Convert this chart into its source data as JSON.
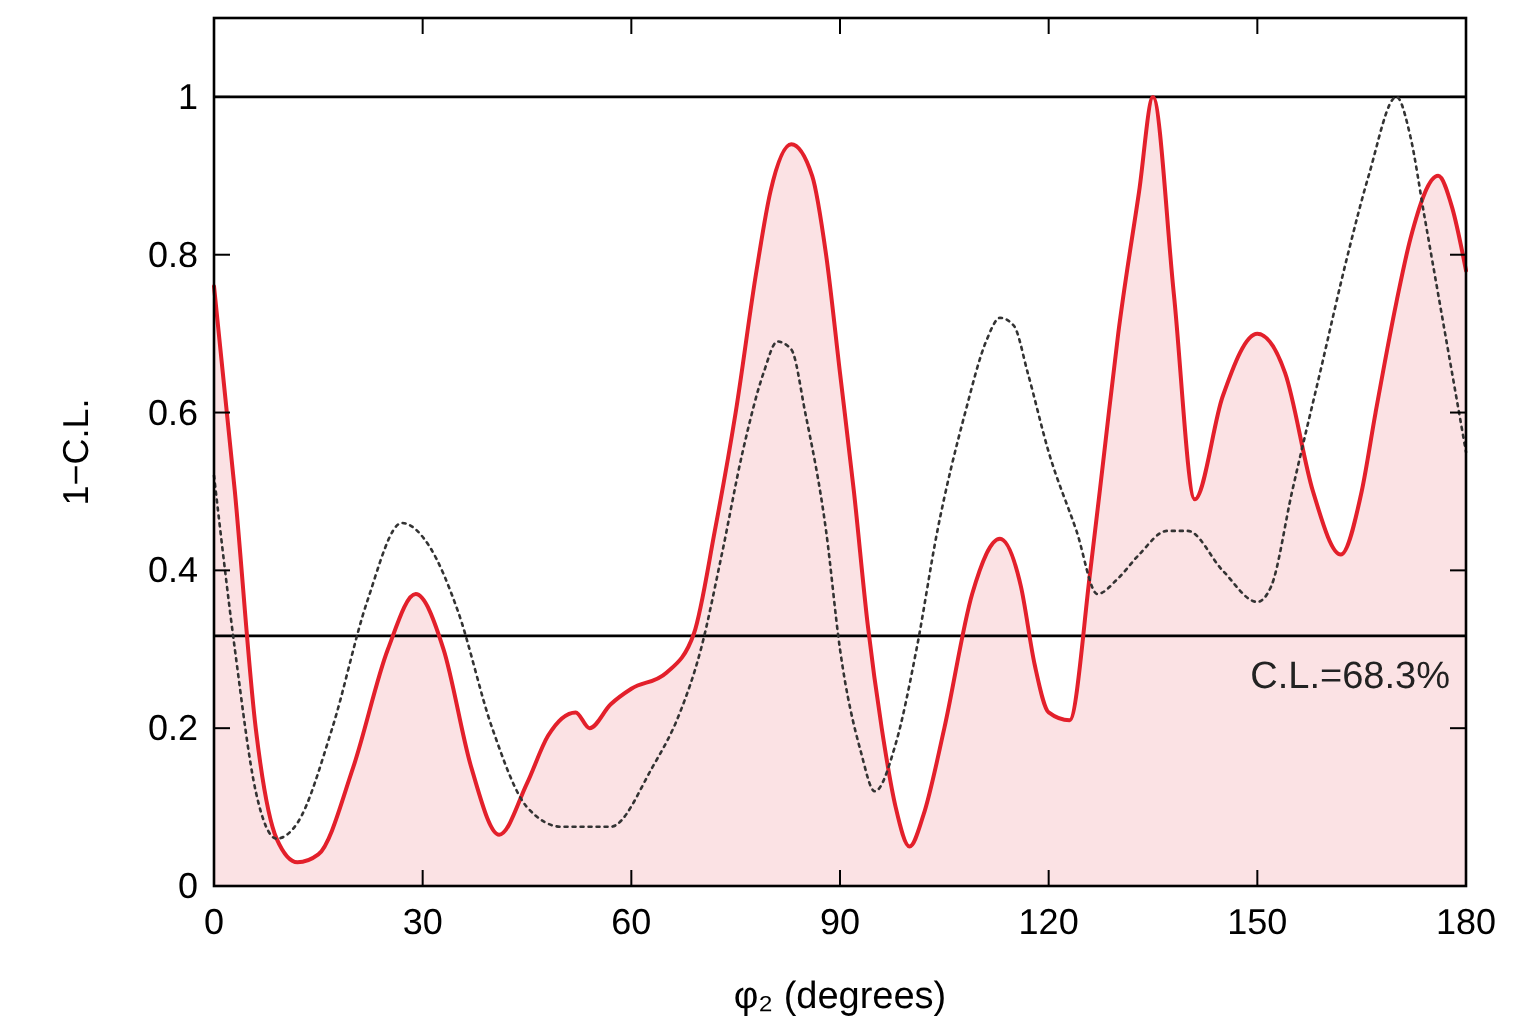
{
  "chart_data": {
    "type": "line",
    "xlabel": "φ₂ (degrees)",
    "ylabel": "1−C.L.",
    "xlim": [
      0,
      180
    ],
    "ylim": [
      0,
      1.1
    ],
    "xticks": [
      0,
      30,
      60,
      90,
      120,
      150,
      180
    ],
    "yticks": [
      0,
      0.2,
      0.4,
      0.6,
      0.8,
      1
    ],
    "grid": false,
    "series": [
      {
        "type": "area",
        "color": "#e3202b",
        "line_style": "solid",
        "x": [
          0,
          3,
          6,
          9,
          12,
          15,
          20,
          25,
          29,
          33,
          37,
          41,
          45,
          48,
          52,
          54,
          57,
          60,
          65,
          69,
          72,
          75,
          78,
          80,
          83,
          86,
          88,
          90,
          92,
          94,
          96,
          98,
          100,
          102,
          105,
          109,
          113,
          116,
          118,
          120,
          123,
          126,
          128,
          130,
          133,
          135,
          138,
          141,
          145,
          150,
          154,
          158,
          162,
          165,
          167,
          170,
          172,
          176,
          178,
          180
        ],
        "values": [
          0.76,
          0.5,
          0.2,
          0.06,
          0.03,
          0.04,
          0.15,
          0.3,
          0.37,
          0.3,
          0.15,
          0.065,
          0.13,
          0.19,
          0.22,
          0.2,
          0.23,
          0.25,
          0.27,
          0.32,
          0.45,
          0.6,
          0.78,
          0.88,
          0.94,
          0.9,
          0.8,
          0.65,
          0.5,
          0.33,
          0.2,
          0.1,
          0.05,
          0.09,
          0.2,
          0.37,
          0.44,
          0.38,
          0.28,
          0.22,
          0.21,
          0.4,
          0.55,
          0.7,
          0.88,
          1.0,
          0.75,
          0.49,
          0.62,
          0.7,
          0.65,
          0.5,
          0.42,
          0.5,
          0.6,
          0.74,
          0.82,
          0.9,
          0.86,
          0.78
        ]
      },
      {
        "color": "#333333",
        "line_style": "dotted",
        "x": [
          0,
          3,
          6,
          9,
          12,
          17,
          22,
          27,
          31,
          35,
          40,
          45,
          50,
          57,
          63,
          67,
          70,
          73,
          76,
          79,
          81,
          83,
          85,
          88,
          90,
          93,
          95,
          98,
          101,
          104,
          108,
          111,
          113,
          115,
          117,
          120,
          124,
          127,
          130,
          133,
          137,
          140,
          145,
          150,
          152,
          155,
          159,
          163,
          166,
          170,
          172,
          174,
          177,
          180
        ],
        "values": [
          0.52,
          0.3,
          0.12,
          0.06,
          0.08,
          0.2,
          0.36,
          0.46,
          0.43,
          0.35,
          0.2,
          0.1,
          0.075,
          0.075,
          0.15,
          0.22,
          0.3,
          0.42,
          0.55,
          0.65,
          0.69,
          0.68,
          0.6,
          0.45,
          0.3,
          0.17,
          0.12,
          0.18,
          0.3,
          0.45,
          0.6,
          0.69,
          0.72,
          0.71,
          0.65,
          0.55,
          0.45,
          0.37,
          0.39,
          0.42,
          0.45,
          0.45,
          0.4,
          0.36,
          0.38,
          0.5,
          0.65,
          0.8,
          0.9,
          1.0,
          0.95,
          0.85,
          0.7,
          0.55
        ]
      }
    ],
    "ref_lines": [
      {
        "axis": "y",
        "value": 1,
        "label": null,
        "color": "#000000"
      },
      {
        "axis": "y",
        "value": 0.317,
        "label": null,
        "color": "#000000"
      }
    ],
    "annotations": [
      "C.L.=68.3%"
    ]
  }
}
